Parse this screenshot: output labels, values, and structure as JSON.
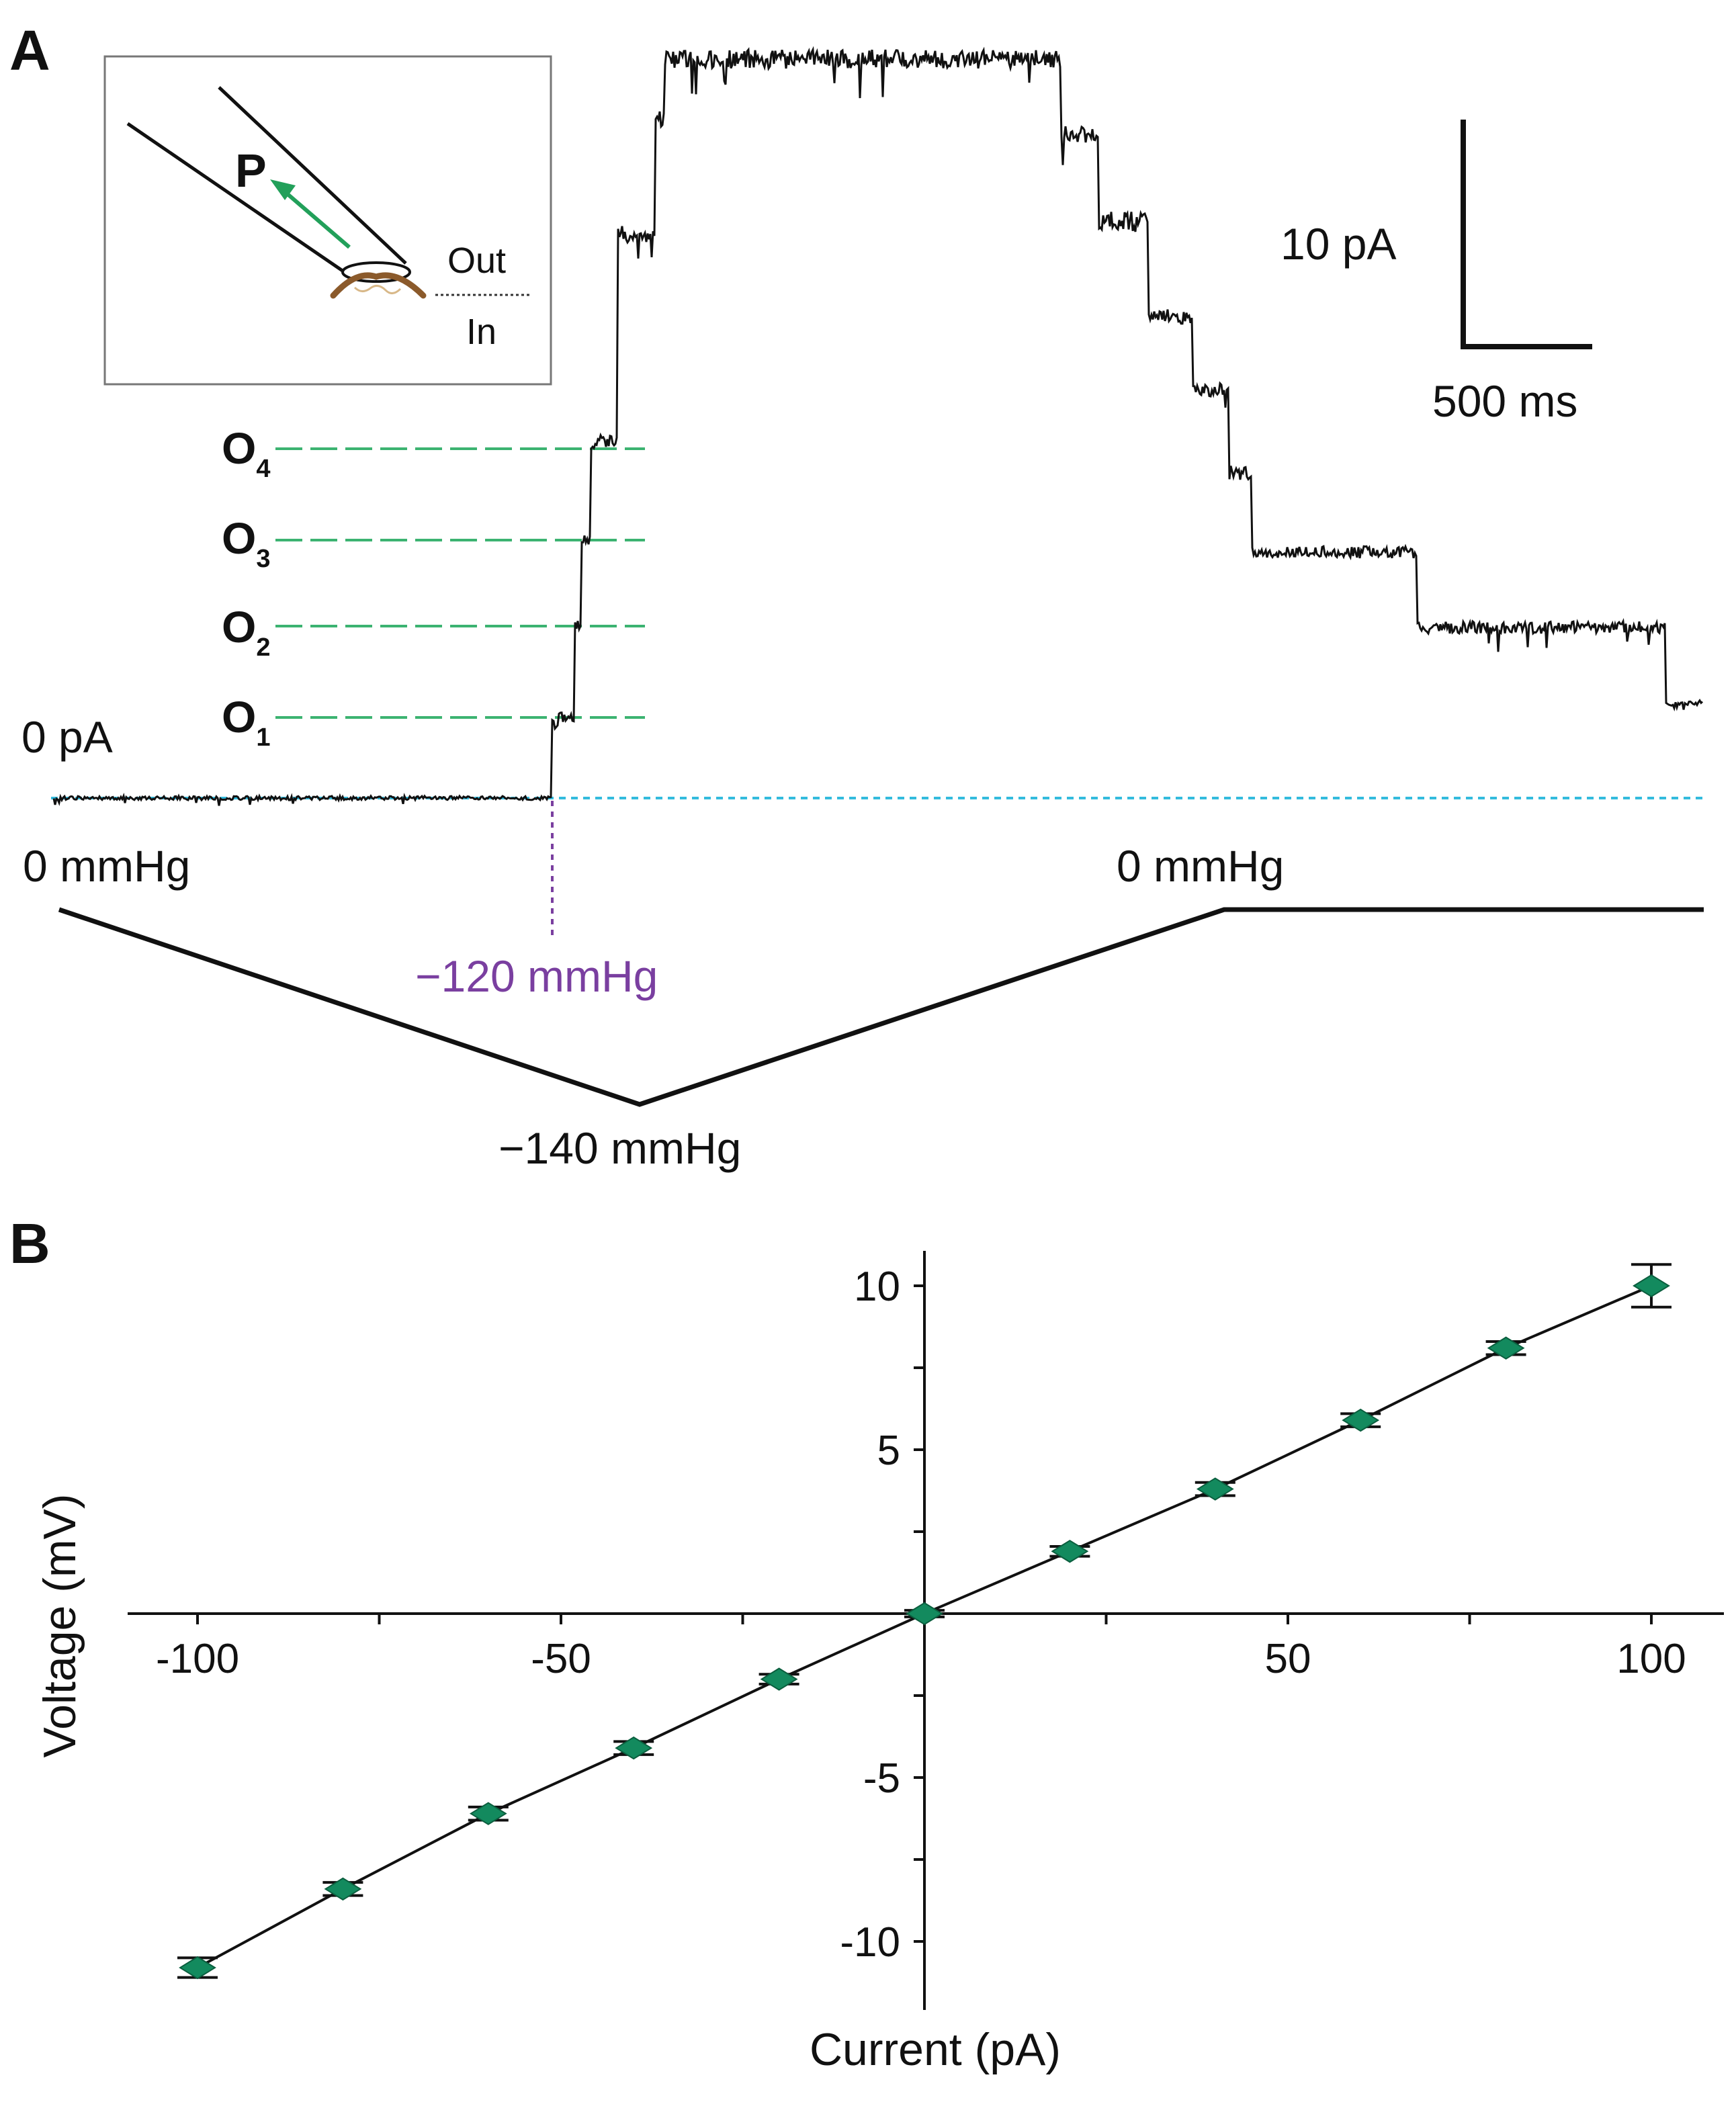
{
  "panel_a": {
    "letter": "A",
    "inset": {
      "pressure_label": "P",
      "out_label": "Out",
      "in_label": "In"
    },
    "scale_bar": {
      "current_label": "10 pA",
      "time_label": "500 ms"
    },
    "zero_current_label": "0 pA",
    "open_levels": [
      {
        "letter": "O",
        "index": "1"
      },
      {
        "letter": "O",
        "index": "2"
      },
      {
        "letter": "O",
        "index": "3"
      },
      {
        "letter": "O",
        "index": "4"
      }
    ],
    "pressure_labels": {
      "start": "0 mmHg",
      "threshold": "−120 mmHg",
      "minimum": "−140 mmHg",
      "end": "0 mmHg"
    },
    "colors": {
      "trace": "#111111",
      "levels": "#3cb371",
      "baseline": "#33bbdd",
      "threshold": "#7a3fa0",
      "arrow": "#22a05a"
    }
  },
  "panel_b": {
    "letter": "B",
    "colors": {
      "marker": "#138a5e",
      "line": "#111111"
    }
  },
  "chart_data": {
    "type": "scatter",
    "xlabel": "Current (pA)",
    "ylabel": "Voltage (mV)",
    "xlim": [
      -110,
      110
    ],
    "ylim": [
      -12,
      11
    ],
    "x_ticks": [
      -100,
      -50,
      50,
      100
    ],
    "y_ticks": [
      10,
      5,
      -5,
      -10
    ],
    "grid": false,
    "fit_line": true,
    "series": [
      {
        "x": [
          -100,
          -80,
          -60,
          -40,
          -20,
          0,
          20,
          40,
          60,
          80,
          100
        ],
        "y": [
          -10.8,
          -8.4,
          -6.1,
          -4.1,
          -2.0,
          0.0,
          1.9,
          3.8,
          5.9,
          8.1,
          10.0
        ],
        "err": [
          0.3,
          0.2,
          0.2,
          0.2,
          0.15,
          0.1,
          0.15,
          0.2,
          0.2,
          0.2,
          0.65
        ]
      }
    ]
  }
}
